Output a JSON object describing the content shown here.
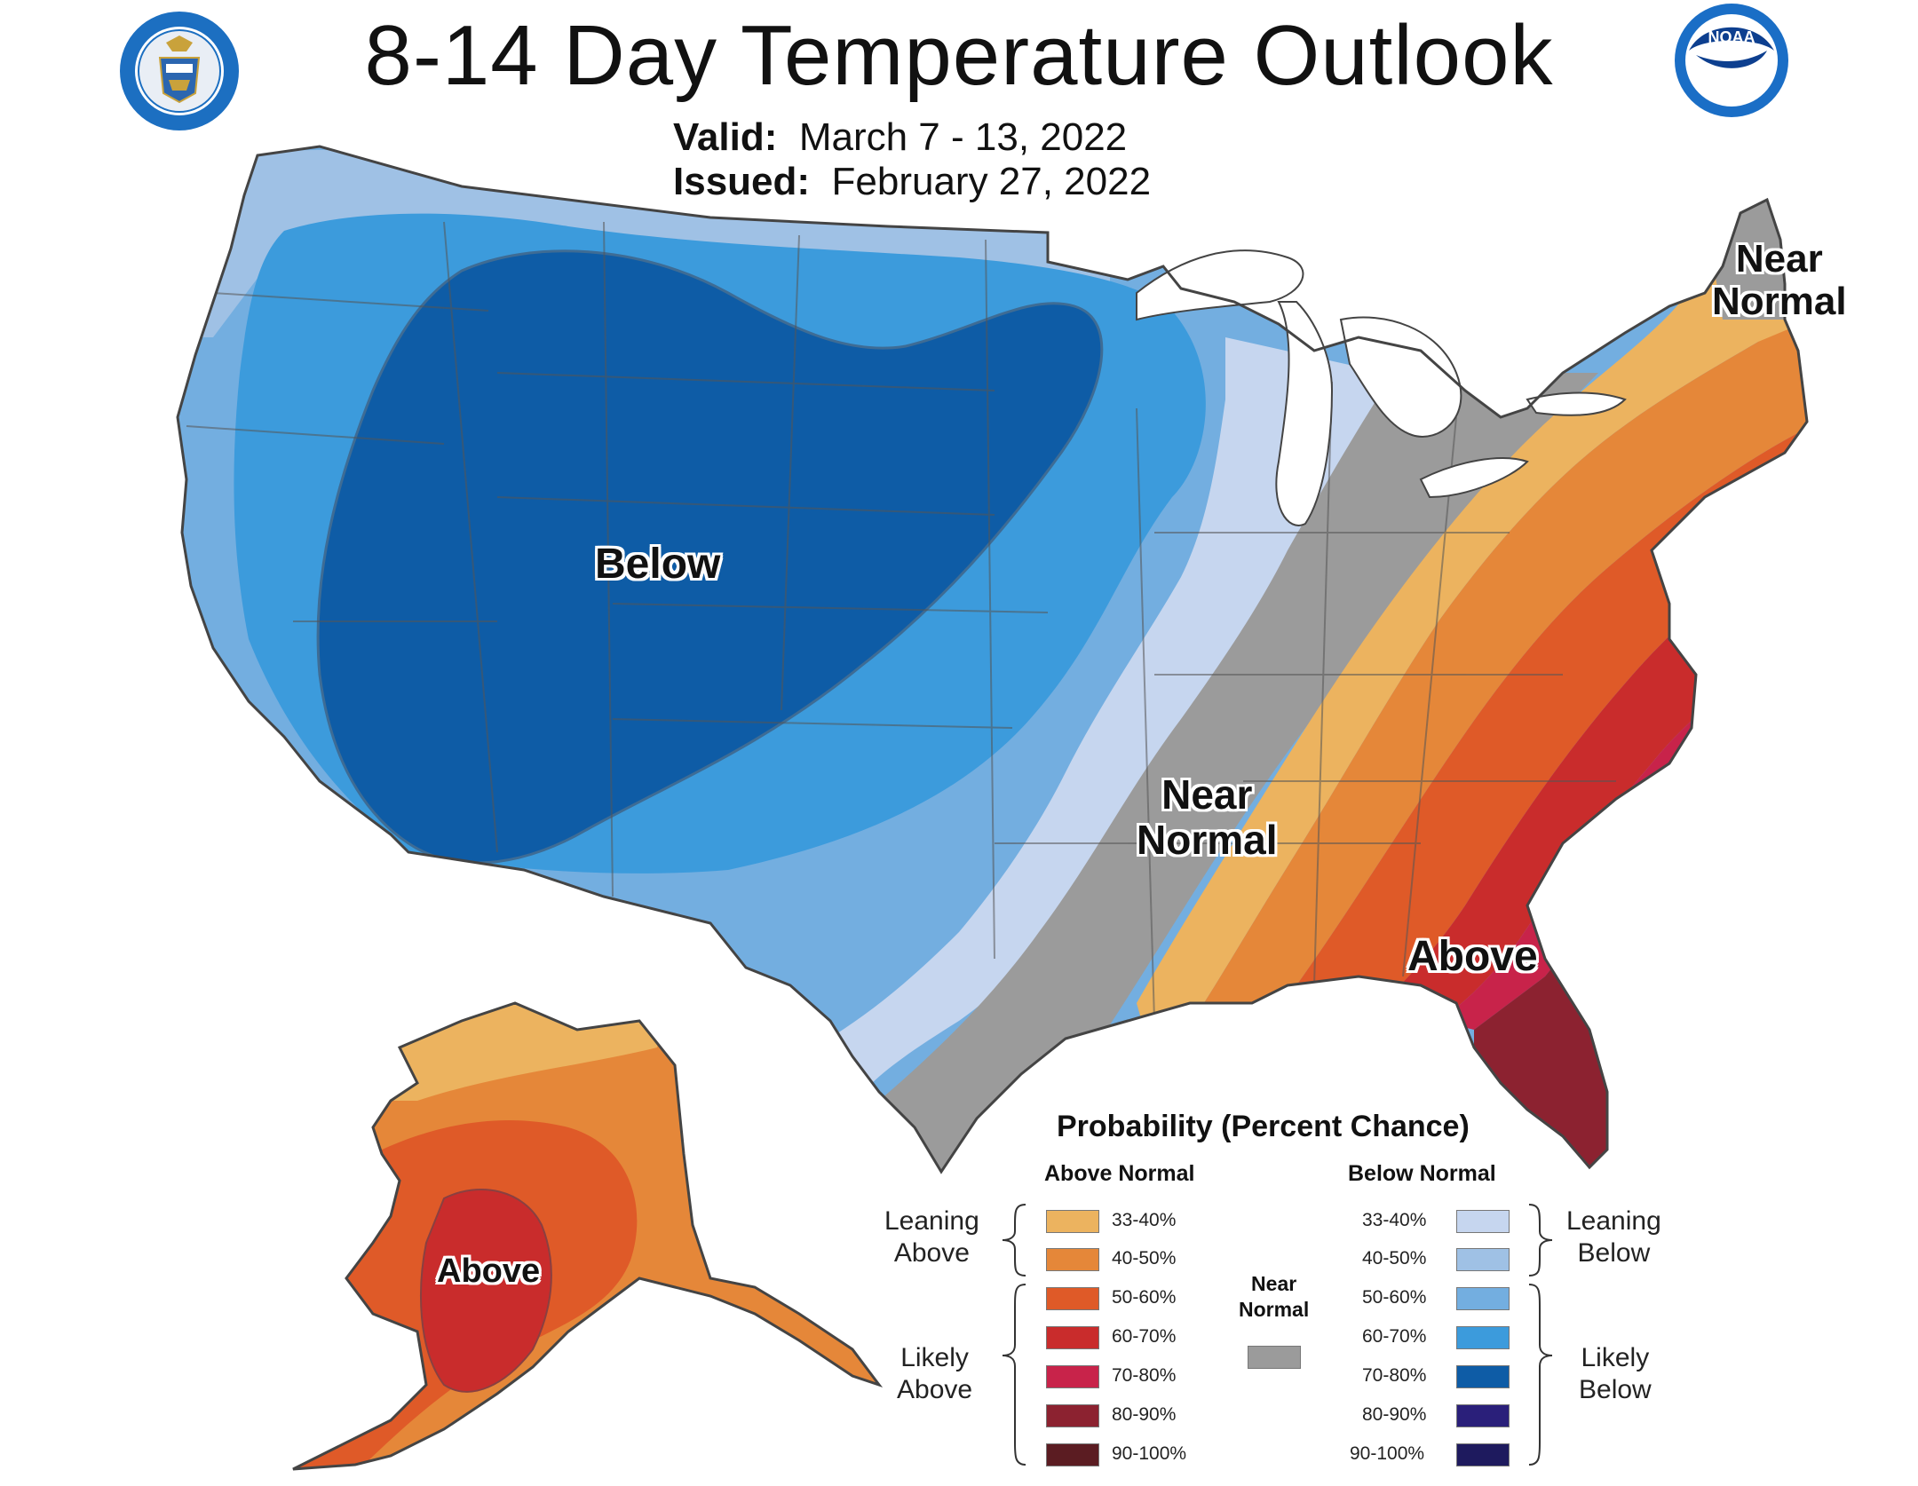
{
  "title": "8-14 Day Temperature Outlook",
  "valid": {
    "label": "Valid:",
    "value": "March 7 - 13, 2022"
  },
  "issued": {
    "label": "Issued:",
    "value": "February 27, 2022"
  },
  "logos": {
    "left": {
      "name": "us-department-of-commerce-seal",
      "text": "DEPARTMENT OF COMMERCE · UNITED STATES OF AMERICA"
    },
    "right": {
      "name": "noaa-logo",
      "text": "NOAA"
    }
  },
  "map_labels": {
    "below": "Below",
    "near_normal_center": [
      "Near",
      "Normal"
    ],
    "near_normal_northeast": [
      "Near",
      "Normal"
    ],
    "above_southeast": "Above",
    "above_alaska": "Above"
  },
  "colors": {
    "above": [
      "#ecb35f",
      "#e58739",
      "#df5a28",
      "#c92c2c",
      "#c8234a",
      "#8c2230",
      "#5b1c22"
    ],
    "below": [
      "#c6d6ef",
      "#9fc1e5",
      "#73aee0",
      "#3c9bdc",
      "#0e5ca6",
      "#2a1f7a",
      "#1e1a5e"
    ],
    "near_normal": "#9b9b9b",
    "state_border": "#555555",
    "noaa_blue": "#1a6ec6"
  },
  "legend": {
    "title": "Probability (Percent Chance)",
    "above_header": "Above Normal",
    "below_header": "Below Normal",
    "near_normal": [
      "Near",
      "Normal"
    ],
    "leaning_above": [
      "Leaning",
      "Above"
    ],
    "likely_above": [
      "Likely",
      "Above"
    ],
    "leaning_below": [
      "Leaning",
      "Below"
    ],
    "likely_below": [
      "Likely",
      "Below"
    ],
    "ranges": [
      "33-40%",
      "40-50%",
      "50-60%",
      "60-70%",
      "70-80%",
      "80-90%",
      "90-100%"
    ]
  }
}
